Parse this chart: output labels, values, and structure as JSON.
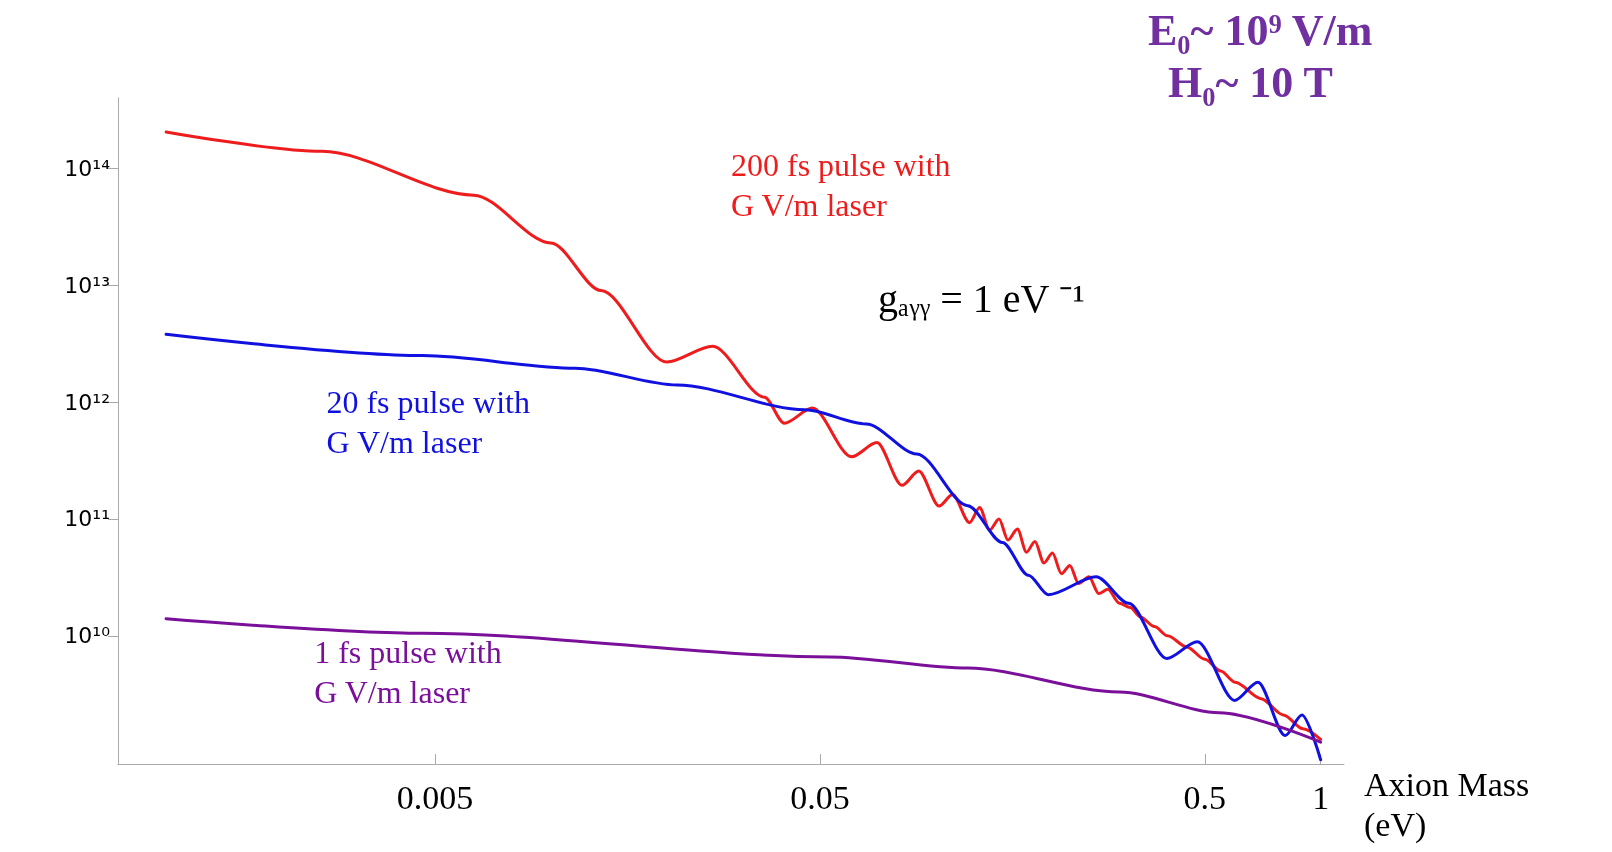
{
  "chart_data": {
    "type": "line",
    "xlabel": "Axion Mass\n(eV)",
    "log": "xy",
    "grid": false,
    "legend": false,
    "marker": "none",
    "line_style": "solid",
    "xlim": [
      0.00075,
      1.15
    ],
    "ylim": [
      800000000.0,
      400000000000000.0
    ],
    "xticks": [
      0.005,
      0.05,
      0.5,
      1
    ],
    "yticks": [
      {
        "value": 10000000000.0,
        "label": "10¹⁰"
      },
      {
        "value": 100000000000.0,
        "label": "10¹¹"
      },
      {
        "value": 1000000000000.0,
        "label": "10¹²"
      },
      {
        "value": 10000000000000.0,
        "label": "10¹³"
      },
      {
        "value": 100000000000000.0,
        "label": "10¹⁴"
      }
    ],
    "annotations": [
      "gₐᵧᵧ = 1 eV ⁻¹",
      "E₀~ 10⁹ V/m",
      "H₀~ 10 T"
    ],
    "series": [
      {
        "name": "200 fs pulse with\nG V/m laser",
        "color": "#ee1c1c",
        "x": [
          0.001,
          0.00254,
          0.0063,
          0.01,
          0.0135,
          0.02,
          0.0263,
          0.0359,
          0.0404,
          0.0478,
          0.0604,
          0.0703,
          0.0817,
          0.0903,
          0.102,
          0.1106,
          0.1224,
          0.13,
          0.138,
          0.146,
          0.154,
          0.163,
          0.172,
          0.181,
          0.191,
          0.201,
          0.212,
          0.223,
          0.235,
          0.25,
          0.265,
          0.28,
          0.3,
          0.32,
          0.34,
          0.37,
          0.4,
          0.45,
          0.5,
          0.55,
          0.6,
          0.7,
          0.8,
          0.9,
          1
        ],
        "values": [
          205000000000000.0,
          140000000000000.0,
          59000000000000.0,
          23000000000000.0,
          9000000000000.0,
          2200000000000.0,
          3000000000000.0,
          1100000000000.0,
          660000000000.0,
          890000000000.0,
          340000000000.0,
          450000000000.0,
          194000000000.0,
          257000000000.0,
          129000000000.0,
          162000000000.0,
          93000000000.0,
          125000000000.0,
          80000000000.0,
          100000000000.0,
          66000000000.0,
          82000000000.0,
          52000000000.0,
          64000000000.0,
          42000000000.0,
          51000000000.0,
          34000000000.0,
          40000000000.0,
          28000000000.0,
          32000000000.0,
          23000000000.0,
          25000000000.0,
          19000000000.0,
          17500000000.0,
          14500000000.0,
          12000000000.0,
          10000000000.0,
          8000000000.0,
          6300000000.0,
          5000000000.0,
          4000000000.0,
          2900000000.0,
          2100000000.0,
          1600000000.0,
          1300000000.0
        ]
      },
      {
        "name": "20 fs pulse with\nG V/m laser",
        "color": "#1010e0",
        "x": [
          0.001,
          0.00464,
          0.01156,
          0.0213,
          0.0457,
          0.066,
          0.0893,
          0.121,
          0.149,
          0.174,
          0.196,
          0.261,
          0.317,
          0.398,
          0.478,
          0.598,
          0.687,
          0.809,
          0.894,
          1
        ],
        "values": [
          3800000000000.0,
          2500000000000.0,
          1950000000000.0,
          1400000000000.0,
          860000000000.0,
          650000000000.0,
          360000000000.0,
          130000000000.0,
          63000000000.0,
          33000000000.0,
          22500000000.0,
          32000000000.0,
          19000000000.0,
          6400000000.0,
          8900000000.0,
          2800000000.0,
          4000000000.0,
          1400000000.0,
          2100000000.0,
          870000000.0
        ]
      },
      {
        "name": "1 fs pulse with\nG V/m laser",
        "color": "#7a0f9a",
        "x": [
          0.001,
          0.00464,
          0.053,
          0.121,
          0.3,
          0.546,
          1
        ],
        "values": [
          14000000000.0,
          10500000000.0,
          6600000000.0,
          5300000000.0,
          3300000000.0,
          2200000000.0,
          1230000000.0
        ]
      }
    ]
  }
}
